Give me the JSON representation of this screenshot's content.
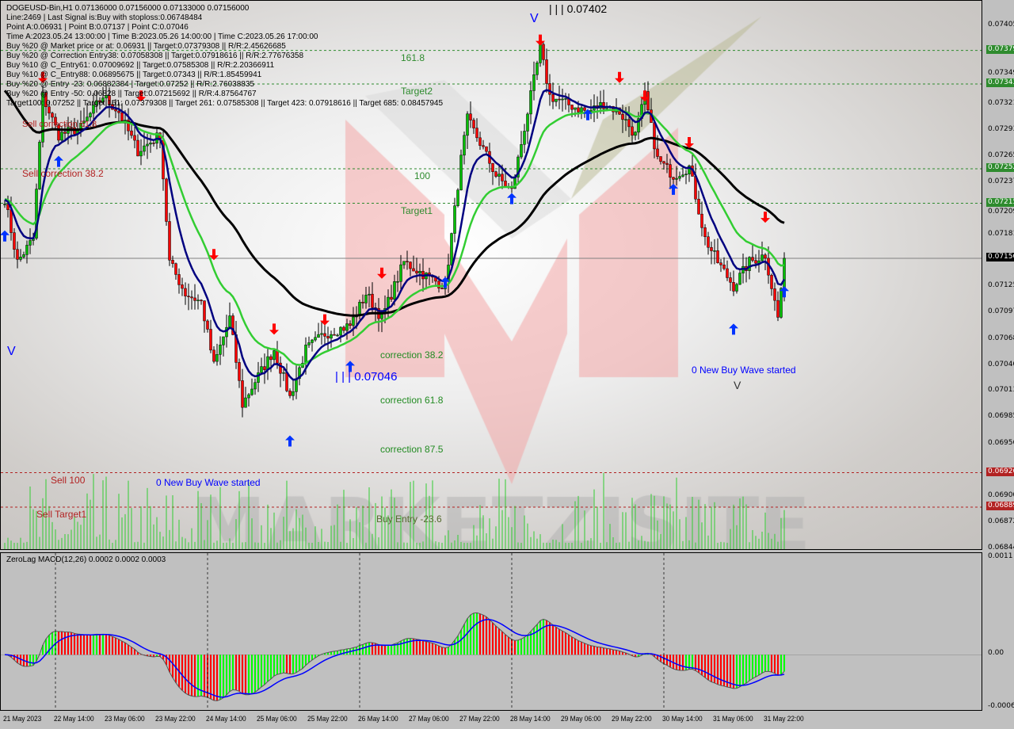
{
  "chart_data": {
    "type": "candlestick",
    "symbol_line": "DOGEUSD-Bin,H1  0.07136000 0.07156000 0.07133000 0.07156000",
    "info_lines": [
      "Line:2469 | Last Signal is:Buy with stoploss:0.06748484",
      "Point A:0.06931 | Point B:0.07137 | Point C:0.07046",
      "Time A:2023.05.24 13:00:00 | Time B:2023.05.26 14:00:00 | Time C:2023.05.26 17:00:00",
      "Buy %20 @ Market price or at: 0.06931 || Target:0.07379308 || R/R:2.45626685",
      "Buy %20 @ Correction Entry38: 0.07058308 || Target:0.07918616 || R/R:2.77676358",
      "Buy %10 @ C_Entry61: 0.07009692 || Target:0.07585308 || R/R:2.20366911",
      "Buy %10 @ C_Entry88: 0.06895675 || Target:0.07343 || R/R:1.85459941",
      "Buy %20 @ Entry -23: 0.06882384 | Target:0.07252 || R/R:2.76038835",
      "Buy %20 @ Entry -50: 0.06828 || Target:0.07215692 || R/R:4.87564767",
      "Target100: 0.07252 || Target 161: 0.07379308 || Target 261: 0.07585308 || Target 423: 0.07918616 || Target 685: 0.08457945"
    ],
    "price_range": [
      0.06844,
      0.07405
    ],
    "close_series": [
      [
        "2023-05-21 22:00",
        0.0722
      ],
      [
        "2023-05-22 02:00",
        0.07152
      ],
      [
        "2023-05-22 07:00",
        0.07177
      ],
      [
        "2023-05-22 10:00",
        0.0733
      ],
      [
        "2023-05-22 15:00",
        0.07288
      ],
      [
        "2023-05-22 22:00",
        0.07296
      ],
      [
        "2023-05-23 05:00",
        0.0733
      ],
      [
        "2023-05-23 10:00",
        0.07313
      ],
      [
        "2023-05-23 16:00",
        0.07271
      ],
      [
        "2023-05-23 23:00",
        0.07288
      ],
      [
        "2023-05-24 02:00",
        0.07152
      ],
      [
        "2023-05-24 07:00",
        0.07118
      ],
      [
        "2023-05-24 12:00",
        0.07109
      ],
      [
        "2023-05-24 16:00",
        0.07041
      ],
      [
        "2023-05-24 21:00",
        0.07092
      ],
      [
        "2023-05-25 01:00",
        0.06999
      ],
      [
        "2023-05-25 05:00",
        0.07024
      ],
      [
        "2023-05-25 11:00",
        0.07058
      ],
      [
        "2023-05-25 16:00",
        0.07007
      ],
      [
        "2023-05-25 21:00",
        0.07058
      ],
      [
        "2023-05-26 03:00",
        0.07075
      ],
      [
        "2023-05-26 11:00",
        0.07084
      ],
      [
        "2023-05-26 16:00",
        0.07118
      ],
      [
        "2023-05-26 21:00",
        0.07092
      ],
      [
        "2023-05-27 04:00",
        0.07152
      ],
      [
        "2023-05-27 12:00",
        0.07135
      ],
      [
        "2023-05-27 17:00",
        0.07126
      ],
      [
        "2023-05-27 22:00",
        0.07262
      ],
      [
        "2023-05-28 00:00",
        0.07305
      ],
      [
        "2023-05-28 04:00",
        0.0728
      ],
      [
        "2023-05-28 09:00",
        0.07245
      ],
      [
        "2023-05-28 14:00",
        0.07228
      ],
      [
        "2023-05-28 19:00",
        0.07313
      ],
      [
        "2023-05-28 23:00",
        0.07381
      ],
      [
        "2023-05-29 02:00",
        0.0733
      ],
      [
        "2023-05-29 07:00",
        0.07322
      ],
      [
        "2023-05-29 14:00",
        0.07313
      ],
      [
        "2023-05-29 19:00",
        0.07322
      ],
      [
        "2023-05-30 00:00",
        0.07313
      ],
      [
        "2023-05-30 05:00",
        0.07288
      ],
      [
        "2023-05-30 08:00",
        0.0733
      ],
      [
        "2023-05-30 12:00",
        0.07262
      ],
      [
        "2023-05-30 17:00",
        0.07245
      ],
      [
        "2023-05-30 22:00",
        0.07254
      ],
      [
        "2023-05-31 03:00",
        0.07177
      ],
      [
        "2023-05-31 07:00",
        0.07152
      ],
      [
        "2023-05-31 12:00",
        0.07126
      ],
      [
        "2023-05-31 17:00",
        0.07152
      ],
      [
        "2023-05-31 22:00",
        0.0716
      ],
      [
        "2023-06-01 02:00",
        0.07092
      ],
      [
        "2023-06-01 04:00",
        0.07156
      ]
    ],
    "levels": [
      {
        "price": 0.07379,
        "label": "161.8",
        "color": "#2e8b2e",
        "style": "dashed"
      },
      {
        "price": 0.07343,
        "label": "Target2",
        "color": "#2e8b2e",
        "style": "dashed"
      },
      {
        "price": 0.07252,
        "label": "100",
        "color": "#2e8b2e",
        "style": "dashed"
      },
      {
        "price": 0.07215,
        "label": "Target1",
        "color": "#2e8b2e",
        "style": "dashed"
      },
      {
        "price": 0.07156,
        "label": "",
        "color": "#808080",
        "style": "solid"
      },
      {
        "price": 0.06926,
        "label": "Sell 100",
        "color": "#b22222",
        "style": "dashed"
      },
      {
        "price": 0.06889,
        "label": "Sell Target1",
        "color": "#b22222",
        "style": "dashed"
      }
    ],
    "annotations": {
      "sell_correction_382": "Sell correction 38.2",
      "sell_correction_618": "Sell correction 61.8",
      "point_c": "| | | 0.07046",
      "point_top": "| | | 0.07402",
      "correction_382": "correction 38.2",
      "correction_618": "correction 61.8",
      "correction_875": "correction 87.5",
      "buy_entry": "Buy Entry -23.6",
      "new_buy_wave_1": "0 New Buy Wave started",
      "new_buy_wave_2": "0 New Buy Wave started",
      "wave_mark": "V"
    },
    "signals": [
      {
        "time": "2023-05-21 22:00",
        "price": 0.0718,
        "type": "buy"
      },
      {
        "time": "2023-05-22 10:00",
        "price": 0.0735,
        "type": "sell"
      },
      {
        "time": "2023-05-22 15:00",
        "price": 0.0726,
        "type": "buy"
      },
      {
        "time": "2023-05-23 17:00",
        "price": 0.0733,
        "type": "sell"
      },
      {
        "time": "2023-05-24 16:00",
        "price": 0.0716,
        "type": "sell"
      },
      {
        "time": "2023-05-25 11:00",
        "price": 0.0708,
        "type": "sell"
      },
      {
        "time": "2023-05-25 16:00",
        "price": 0.0696,
        "type": "buy"
      },
      {
        "time": "2023-05-26 03:00",
        "price": 0.0709,
        "type": "sell"
      },
      {
        "time": "2023-05-26 11:00",
        "price": 0.0704,
        "type": "buy"
      },
      {
        "time": "2023-05-26 21:00",
        "price": 0.0714,
        "type": "sell"
      },
      {
        "time": "2023-05-27 17:00",
        "price": 0.0713,
        "type": "buy"
      },
      {
        "time": "2023-05-28 14:00",
        "price": 0.0722,
        "type": "buy"
      },
      {
        "time": "2023-05-28 23:00",
        "price": 0.0739,
        "type": "sell"
      },
      {
        "time": "2023-05-29 14:00",
        "price": 0.0731,
        "type": "buy"
      },
      {
        "time": "2023-05-30 00:00",
        "price": 0.0735,
        "type": "sell"
      },
      {
        "time": "2023-05-30 08:00",
        "price": 0.0733,
        "type": "sell"
      },
      {
        "time": "2023-05-30 17:00",
        "price": 0.0723,
        "type": "buy"
      },
      {
        "time": "2023-05-30 22:00",
        "price": 0.0728,
        "type": "sell"
      },
      {
        "time": "2023-05-31 12:00",
        "price": 0.0708,
        "type": "buy"
      },
      {
        "time": "2023-05-31 22:00",
        "price": 0.072,
        "type": "sell"
      },
      {
        "time": "2023-06-01 04:00",
        "price": 0.0712,
        "type": "buy"
      }
    ],
    "y_ticks": [
      {
        "v": 0.07405,
        "t": "0.07405"
      },
      {
        "v": 0.07379,
        "t": "0.07379",
        "bg": "#2e8b2e"
      },
      {
        "v": 0.07349,
        "t": "0.07349"
      },
      {
        "v": 0.07343,
        "t": "0.07343",
        "bg": "#2e8b2e"
      },
      {
        "v": 0.07321,
        "t": "0.07321"
      },
      {
        "v": 0.07293,
        "t": "0.07293"
      },
      {
        "v": 0.07265,
        "t": "0.07265"
      },
      {
        "v": 0.07252,
        "t": "0.07252",
        "bg": "#2e8b2e"
      },
      {
        "v": 0.07237,
        "t": "0.07237"
      },
      {
        "v": 0.07215,
        "t": "0.07215",
        "bg": "#2e8b2e"
      },
      {
        "v": 0.07209,
        "t": "0.07209"
      },
      {
        "v": 0.07181,
        "t": "0.07181"
      },
      {
        "v": 0.07156,
        "t": "0.07156",
        "bg": "#000000"
      },
      {
        "v": 0.07125,
        "t": "0.07125"
      },
      {
        "v": 0.07097,
        "t": "0.07097"
      },
      {
        "v": 0.07068,
        "t": "0.07068"
      },
      {
        "v": 0.0704,
        "t": "0.07040"
      },
      {
        "v": 0.07013,
        "t": "0.07013"
      },
      {
        "v": 0.06985,
        "t": "0.06985"
      },
      {
        "v": 0.06956,
        "t": "0.06956"
      },
      {
        "v": 0.06926,
        "t": "0.06926",
        "bg": "#b22222"
      },
      {
        "v": 0.069,
        "t": "0.06900"
      },
      {
        "v": 0.06889,
        "t": "0.06889",
        "bg": "#b22222"
      },
      {
        "v": 0.06872,
        "t": "0.06872"
      },
      {
        "v": 0.06844,
        "t": "0.06844"
      }
    ],
    "x_ticks": [
      "21 May 2023",
      "22 May 14:00",
      "23 May 06:00",
      "23 May 22:00",
      "24 May 14:00",
      "25 May 06:00",
      "25 May 22:00",
      "26 May 14:00",
      "27 May 06:00",
      "27 May 22:00",
      "28 May 14:00",
      "29 May 06:00",
      "29 May 22:00",
      "30 May 14:00",
      "31 May 06:00",
      "31 May 22:00"
    ],
    "macd": {
      "title": "ZeroLag MACD(12,26) 0.0002 0.0002 0.0003",
      "range": [
        -0.0006,
        0.0011
      ],
      "ticks": [
        {
          "v": 0.0011,
          "t": "0.0011"
        },
        {
          "v": 0,
          "t": "0.00"
        },
        {
          "v": -0.0006,
          "t": "-0.0006"
        }
      ],
      "colors": {
        "up": "#00ff00",
        "down": "#ff0000",
        "signal": "#0000ff"
      }
    },
    "colors": {
      "bull": "#00c000",
      "bear": "#ff0000",
      "ma_fast": "#000080",
      "ma_mid": "#32cd32",
      "ma_slow": "#000000",
      "volume": "#32cd32"
    },
    "watermark": "MARKETZISITE"
  }
}
